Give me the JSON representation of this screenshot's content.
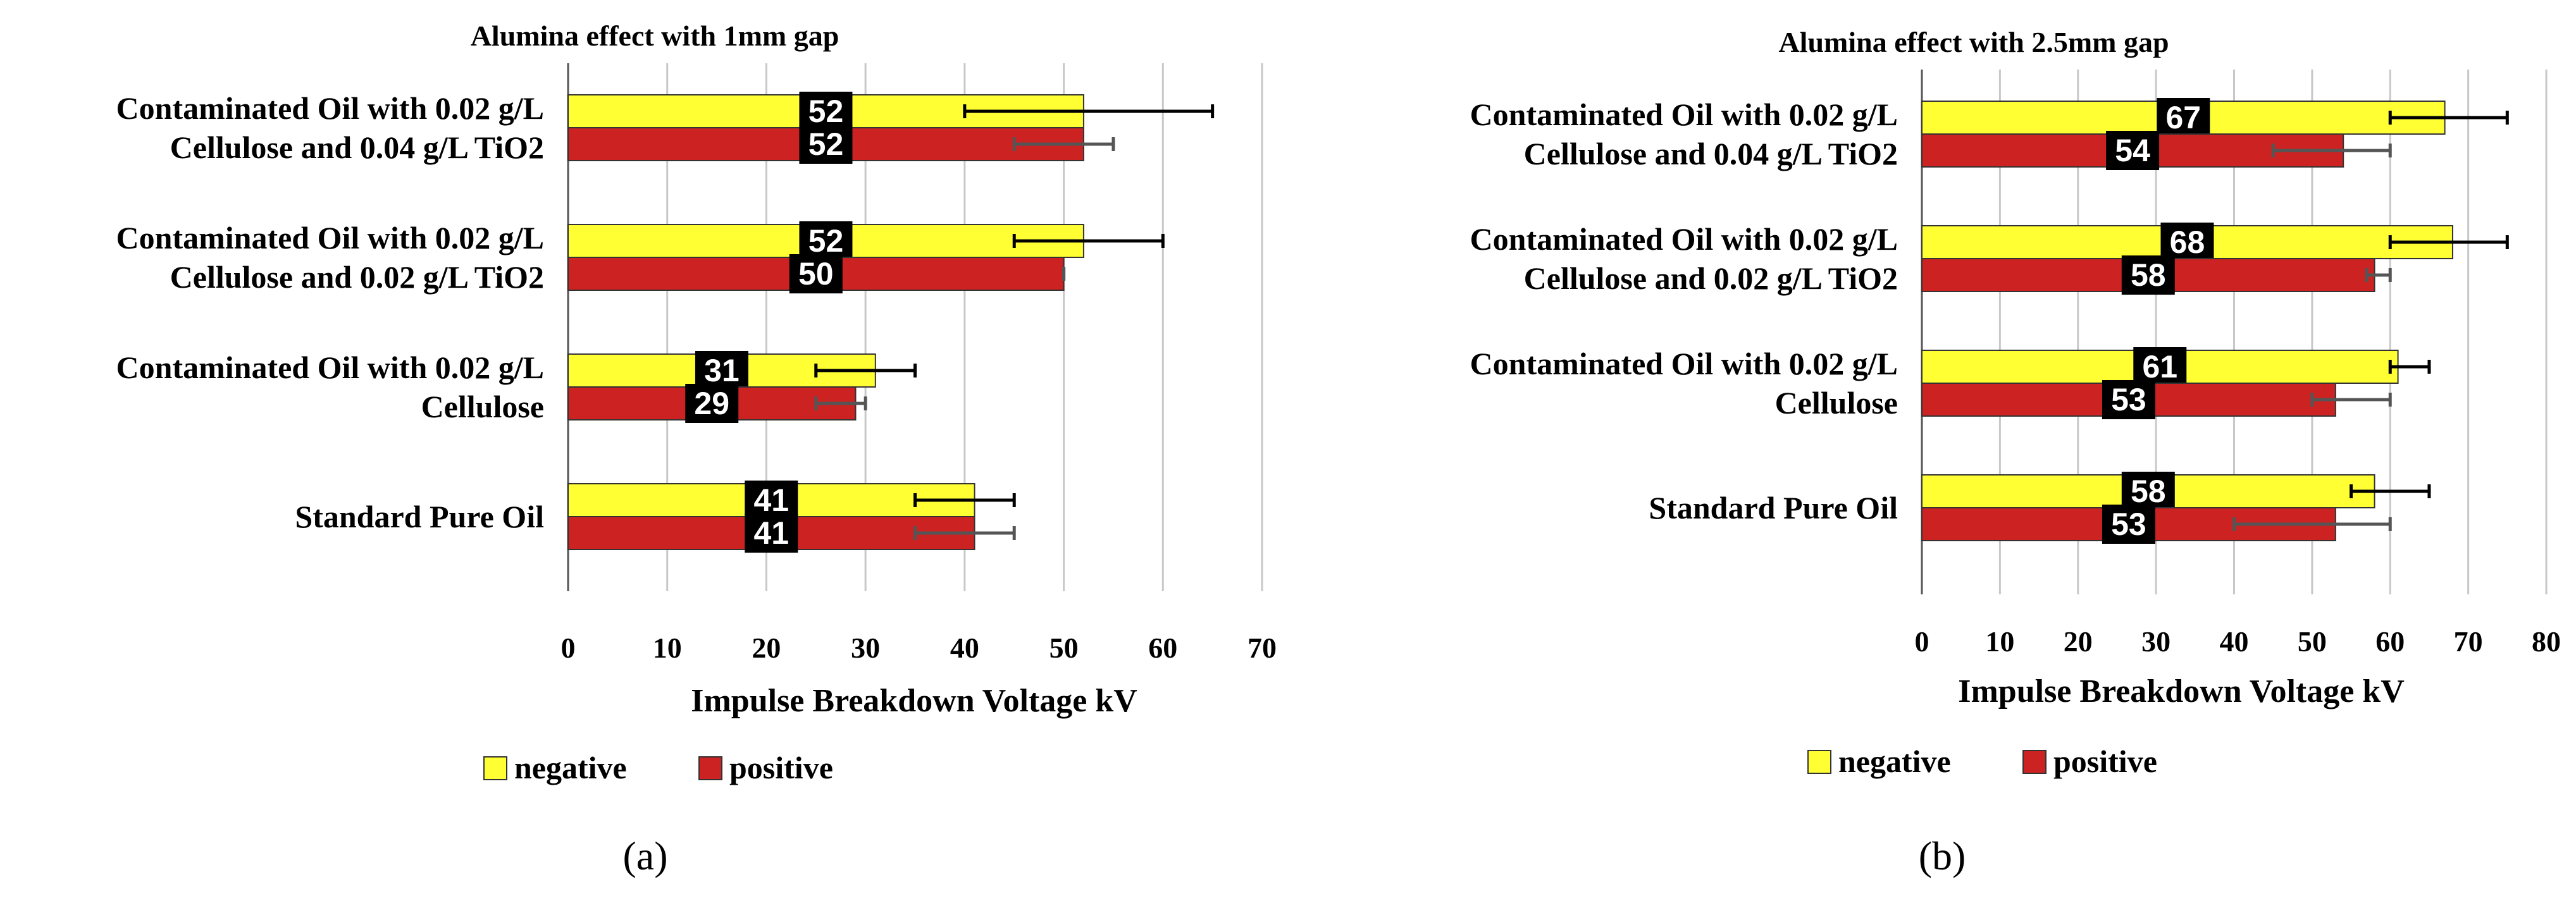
{
  "legend": {
    "negative_label": "negative",
    "positive_label": "positive"
  },
  "colors": {
    "negative": "#ffff33",
    "positive": "#cc2222",
    "label_bg": "#000000"
  },
  "chart_data": [
    {
      "type": "bar",
      "orientation": "horizontal",
      "panel": "(a)",
      "title": "Alumina effect with 1mm gap",
      "xlabel": "Impulse Breakdown Voltage kV",
      "ylabel": "",
      "xlim": [
        0,
        70
      ],
      "xticks": [
        0,
        10,
        20,
        30,
        40,
        50,
        60,
        70
      ],
      "grid": true,
      "legend_position": "bottom",
      "categories": [
        [
          "Contaminated Oil with 0.02 g/L",
          "Cellulose and 0.04 g/L TiO2"
        ],
        [
          "Contaminated Oil with 0.02 g/L",
          "Cellulose and 0.02 g/L TiO2"
        ],
        [
          "Contaminated Oil with 0.02 g/L",
          "Cellulose"
        ],
        [
          "Standard Pure Oil"
        ]
      ],
      "series": [
        {
          "name": "negative",
          "values": [
            52,
            52,
            31,
            41
          ],
          "error_low": [
            40,
            45,
            25,
            35
          ],
          "error_high": [
            65,
            60,
            35,
            45
          ]
        },
        {
          "name": "positive",
          "values": [
            52,
            50,
            29,
            41
          ],
          "error_low": [
            45,
            50,
            25,
            35
          ],
          "error_high": [
            55,
            50,
            30,
            45
          ]
        }
      ]
    },
    {
      "type": "bar",
      "orientation": "horizontal",
      "panel": "(b)",
      "title": "Alumina effect with 2.5mm gap",
      "xlabel": "Impulse Breakdown Voltage kV",
      "ylabel": "",
      "xlim": [
        0,
        80
      ],
      "xticks": [
        0,
        10,
        20,
        30,
        40,
        50,
        60,
        70,
        80
      ],
      "grid": true,
      "legend_position": "bottom",
      "categories": [
        [
          "Contaminated Oil with 0.02 g/L",
          "Cellulose and 0.04 g/L TiO2"
        ],
        [
          "Contaminated Oil with 0.02 g/L",
          "Cellulose and 0.02 g/L TiO2"
        ],
        [
          "Contaminated Oil with 0.02 g/L",
          "Cellulose"
        ],
        [
          "Standard Pure Oil"
        ]
      ],
      "series": [
        {
          "name": "negative",
          "values": [
            67,
            68,
            61,
            58
          ],
          "error_low": [
            60,
            60,
            60,
            55
          ],
          "error_high": [
            75,
            75,
            65,
            65
          ]
        },
        {
          "name": "positive",
          "values": [
            54,
            58,
            53,
            53
          ],
          "error_low": [
            45,
            57,
            50,
            40
          ],
          "error_high": [
            60,
            60,
            60,
            60
          ]
        }
      ]
    }
  ]
}
